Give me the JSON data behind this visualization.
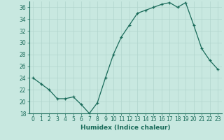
{
  "x": [
    0,
    1,
    2,
    3,
    4,
    5,
    6,
    7,
    8,
    9,
    10,
    11,
    12,
    13,
    14,
    15,
    16,
    17,
    18,
    19,
    20,
    21,
    22,
    23
  ],
  "y": [
    24,
    23,
    22,
    20.5,
    20.5,
    20.8,
    19.5,
    18,
    19.8,
    24,
    28,
    31,
    33,
    35,
    35.5,
    36,
    36.5,
    36.8,
    36,
    36.8,
    33,
    29,
    27,
    25.5
  ],
  "line_color": "#1a6b5a",
  "marker": "+",
  "marker_color": "#1a6b5a",
  "bg_color": "#c8e8e0",
  "grid_color": "#b0d4cc",
  "xlabel": "Humidex (Indice chaleur)",
  "ylim": [
    18,
    37
  ],
  "xlim": [
    -0.5,
    23.5
  ],
  "yticks": [
    18,
    20,
    22,
    24,
    26,
    28,
    30,
    32,
    34,
    36
  ],
  "xticks": [
    0,
    1,
    2,
    3,
    4,
    5,
    6,
    7,
    8,
    9,
    10,
    11,
    12,
    13,
    14,
    15,
    16,
    17,
    18,
    19,
    20,
    21,
    22,
    23
  ],
  "tick_fontsize": 5.5,
  "xlabel_fontsize": 6.5
}
